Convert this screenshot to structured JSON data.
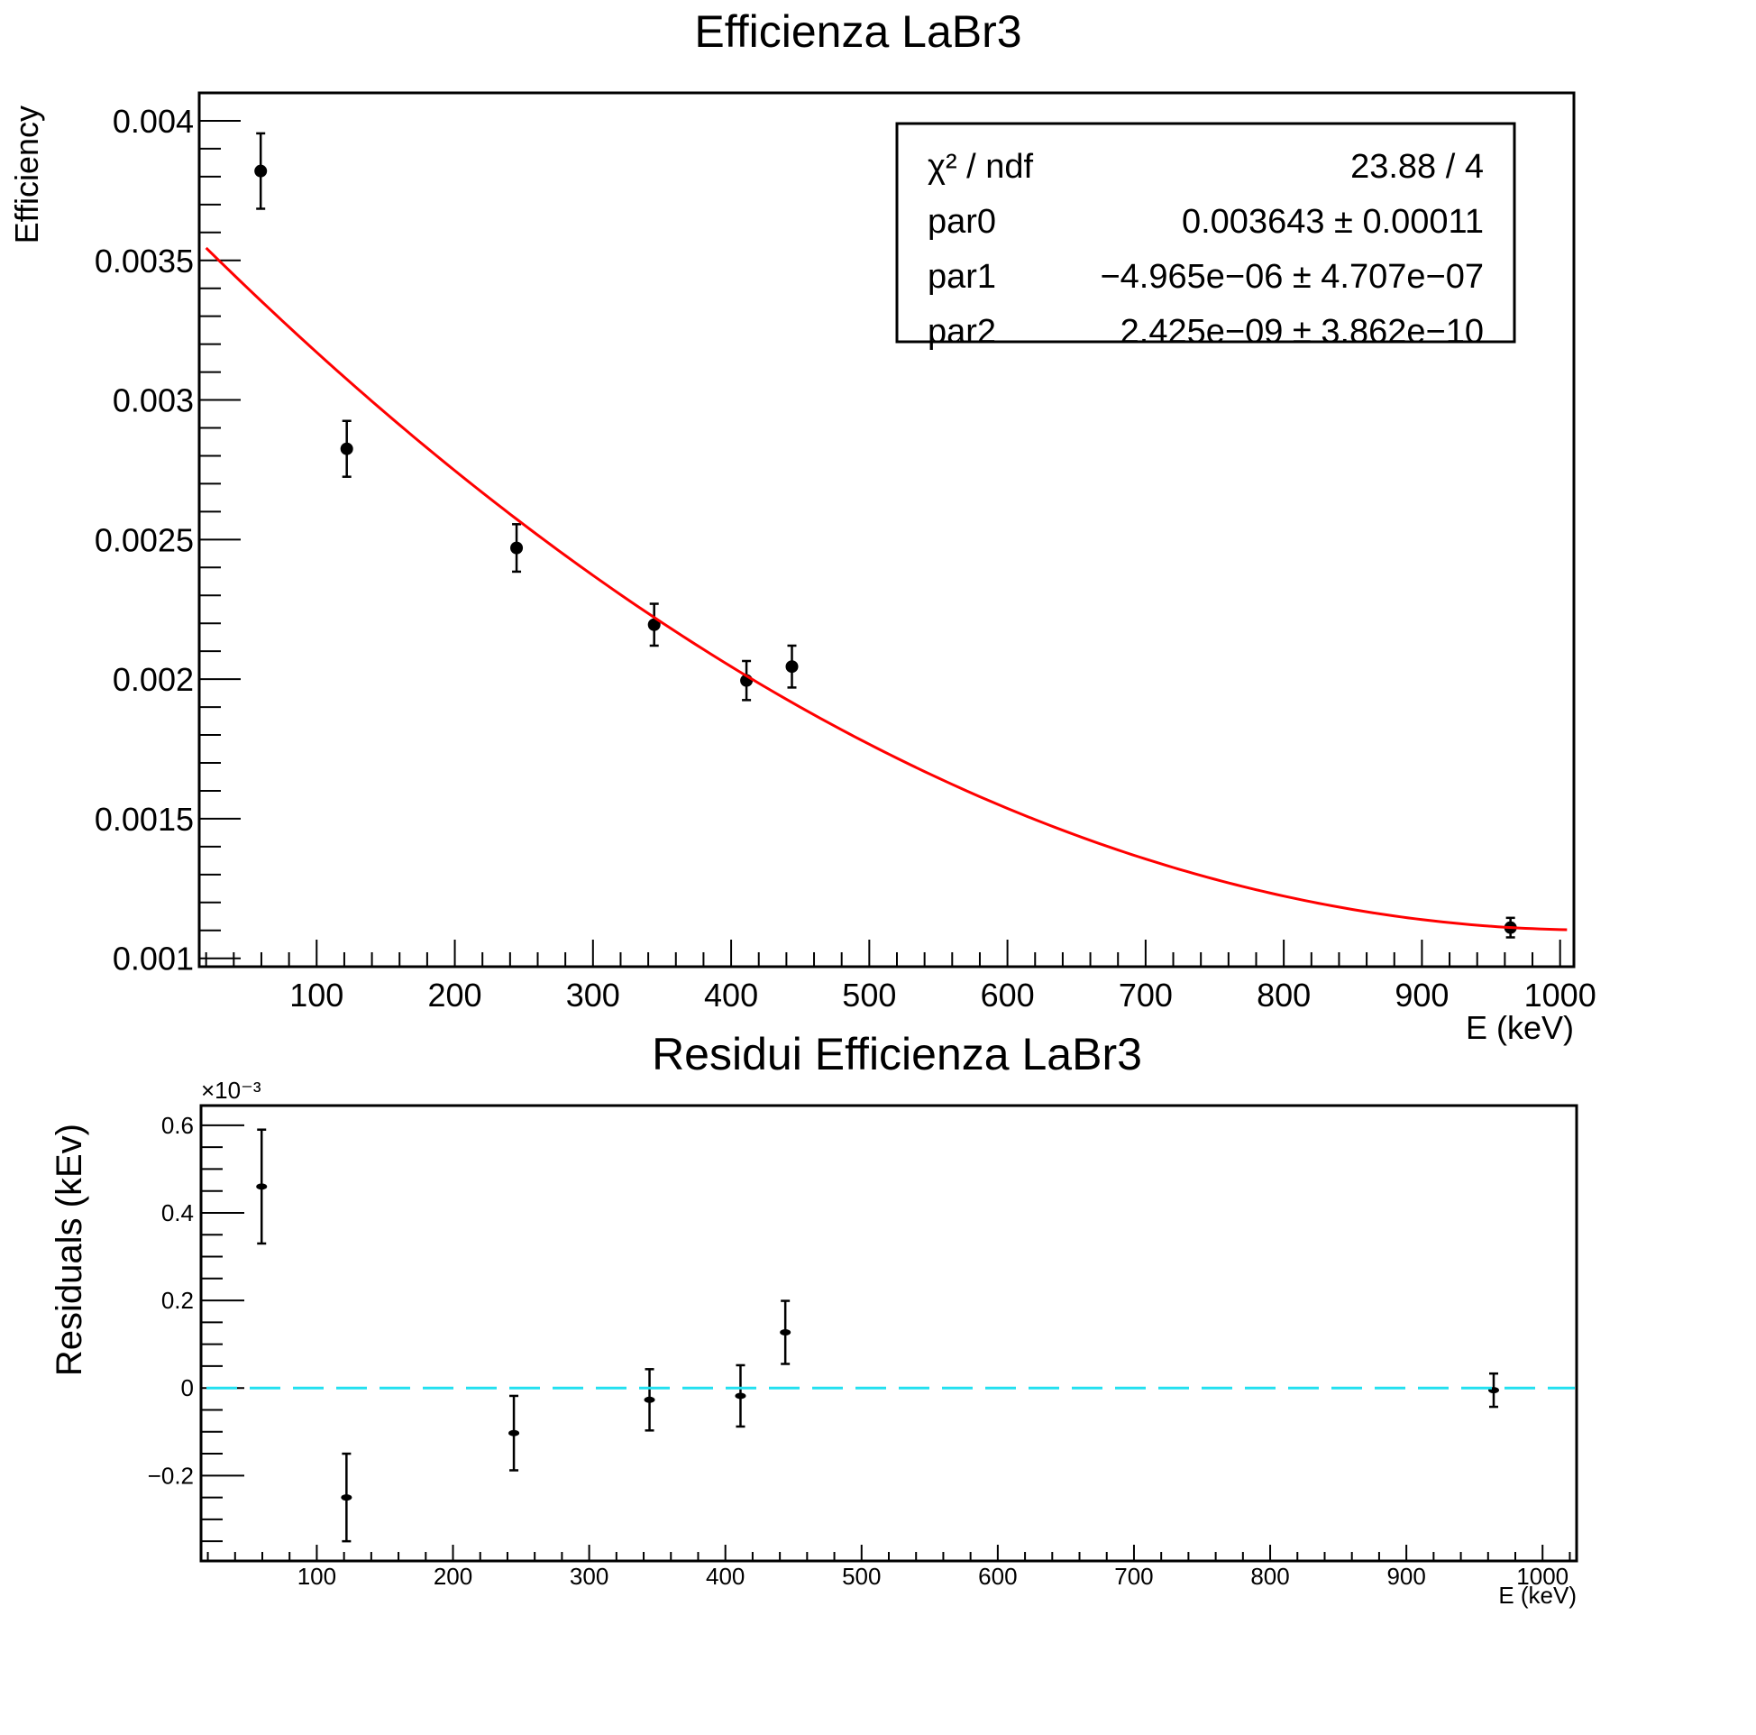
{
  "chart_data": [
    {
      "type": "scatter",
      "title": "Efficienza LaBr3",
      "xlabel": "E (keV)",
      "ylabel": "Efficiency",
      "xlim": [
        15,
        1010
      ],
      "ylim": [
        0.00097,
        0.0041
      ],
      "x_ticks": [
        100,
        200,
        300,
        400,
        500,
        600,
        700,
        800,
        900,
        1000
      ],
      "x_tick_labels": [
        "100",
        "200",
        "300",
        "400",
        "500",
        "600",
        "700",
        "800",
        "900",
        "1000"
      ],
      "y_ticks": [
        0.001,
        0.0015,
        0.002,
        0.0025,
        0.003,
        0.0035,
        0.004
      ],
      "y_tick_labels": [
        "0.001",
        "0.0015",
        "0.002",
        "0.0025",
        "0.003",
        "0.0035",
        "0.004"
      ],
      "grid": false,
      "series": [
        {
          "kind": "points-with-errors",
          "color": "#000000",
          "x": [
            59.5,
            121.8,
            244.7,
            344.3,
            411.1,
            444.0,
            964.1
          ],
          "y": [
            0.00382,
            0.002825,
            0.00247,
            0.002195,
            0.001995,
            0.002045,
            0.00111
          ],
          "yerr": [
            0.000135,
            0.0001,
            8.5e-05,
            7.5e-05,
            7e-05,
            7.5e-05,
            3.5e-05
          ]
        },
        {
          "kind": "fit-function",
          "color": "#ff0000",
          "function": "par0 + par1*x + par2*x^2",
          "params": [
            0.003643,
            -4.965e-06,
            2.425e-09
          ],
          "x_range": [
            20,
            1005
          ]
        }
      ],
      "stats_box": {
        "position": "top-right",
        "rows": [
          {
            "label": "χ² / ndf",
            "value": "23.88 / 4"
          },
          {
            "label": "par0",
            "value": "0.003643 ± 0.00011"
          },
          {
            "label": "par1",
            "value": "−4.965e−06 ± 4.707e−07"
          },
          {
            "label": "par2",
            "value": "2.425e−09 ± 3.862e−10"
          }
        ]
      }
    },
    {
      "type": "scatter",
      "title": "Residui Efficienza LaBr3",
      "xlabel": "E (keV)",
      "ylabel": "Residuals (kEv)",
      "y_multiplier": "×10⁻³",
      "xlim": [
        15,
        1025
      ],
      "ylim": [
        -0.395,
        0.645
      ],
      "x_ticks": [
        100,
        200,
        300,
        400,
        500,
        600,
        700,
        800,
        900,
        1000
      ],
      "x_tick_labels": [
        "100",
        "200",
        "300",
        "400",
        "500",
        "600",
        "700",
        "800",
        "900",
        "1000"
      ],
      "y_ticks": [
        -0.2,
        0,
        0.2,
        0.4,
        0.6
      ],
      "y_tick_labels": [
        "−0.2",
        "0",
        "0.2",
        "0.4",
        "0.6"
      ],
      "grid": false,
      "series": [
        {
          "kind": "points-with-errors",
          "color": "#000000",
          "x": [
            59.5,
            121.8,
            244.7,
            344.3,
            411.1,
            444.0,
            964.1
          ],
          "y": [
            0.46,
            -0.25,
            -0.103,
            -0.027,
            -0.018,
            0.127,
            -0.005
          ],
          "yerr": [
            0.13,
            0.1,
            0.085,
            0.07,
            0.07,
            0.072,
            0.038
          ]
        },
        {
          "kind": "zero-line",
          "color": "#22e0f0",
          "y": 0
        }
      ]
    }
  ]
}
